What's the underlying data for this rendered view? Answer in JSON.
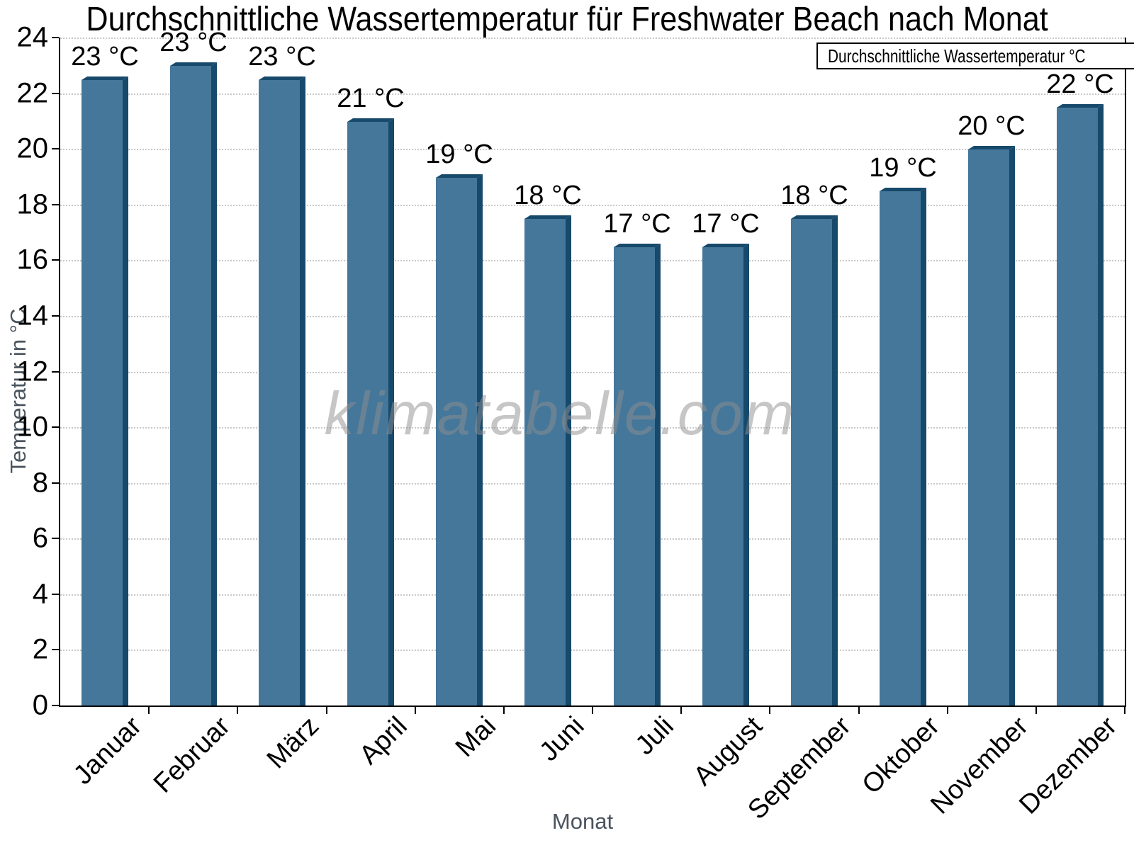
{
  "title": "Durchschnittliche Wassertemperatur für Freshwater Beach nach Monat",
  "watermark": "klimatabelle.com",
  "legend": {
    "label": "Durchschnittliche Wassertemperatur °C",
    "swatch_color": "#45779B",
    "swatch_border": "#17496B"
  },
  "x_axis": {
    "label": "Monat"
  },
  "y_axis": {
    "label": "Temperatur in °C",
    "tick_min": 0,
    "tick_max": 24,
    "tick_step": 2
  },
  "chart_data": {
    "type": "bar",
    "title": "Durchschnittliche Wassertemperatur für Freshwater Beach nach Monat",
    "categories": [
      "Januar",
      "Februar",
      "März",
      "April",
      "Mai",
      "Juni",
      "Juli",
      "August",
      "September",
      "Oktober",
      "November",
      "Dezember"
    ],
    "values": [
      22.6,
      23.1,
      22.6,
      21.1,
      19.1,
      17.6,
      16.6,
      16.6,
      17.6,
      18.6,
      20.1,
      21.6
    ],
    "bar_labels": [
      "23 °C",
      "23 °C",
      "23 °C",
      "21 °C",
      "19 °C",
      "18 °C",
      "17 °C",
      "17 °C",
      "18 °C",
      "19 °C",
      "20 °C",
      "22 °C"
    ],
    "xlabel": "Monat",
    "ylabel": "Temperatur in °C",
    "ylim": [
      0,
      24
    ],
    "ytick_step": 2,
    "legend_entries": [
      "Durchschnittliche Wassertemperatur °C"
    ],
    "legend_position": "top-right",
    "grid": "horizontal-dotted",
    "colors": {
      "bar": "#45779B",
      "bar_shadow": "#17496B",
      "gridline": "#c8c8c8",
      "axis": "#000000",
      "axis_title": "#4a545e",
      "watermark": "#8f8f8f"
    }
  }
}
